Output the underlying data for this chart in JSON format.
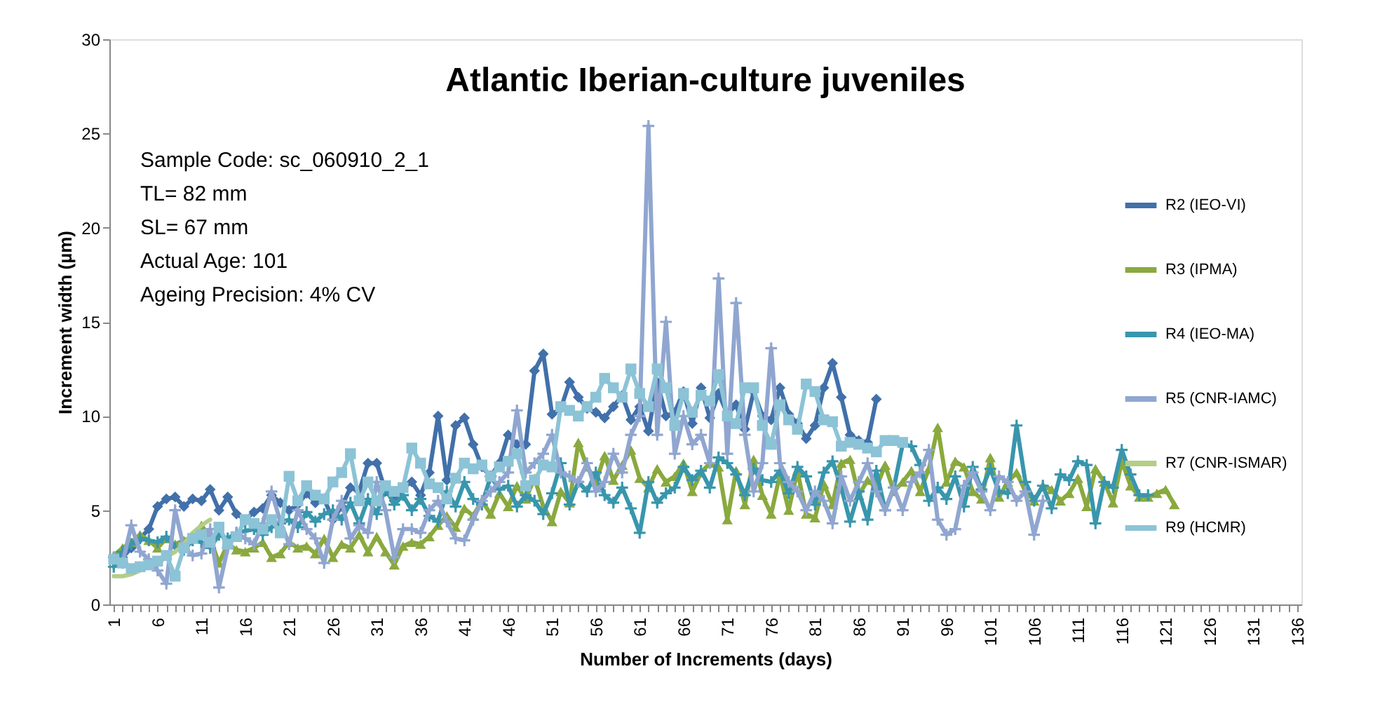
{
  "chart_data": {
    "type": "line",
    "title": "Atlantic Iberian-culture juveniles",
    "xlabel": "Number of Increments (days)",
    "ylabel": "Increment width (µm)",
    "annotations": [
      "Sample Code: sc_060910_2_1",
      "TL= 82 mm",
      "SL= 67 mm",
      "Actual Age:  101",
      "Ageing Precision:  4% CV"
    ],
    "categories": [
      "1",
      null,
      null,
      null,
      null,
      "6",
      null,
      null,
      null,
      null,
      "11",
      null,
      null,
      null,
      null,
      "16",
      null,
      null,
      null,
      null,
      "21",
      null,
      null,
      null,
      null,
      "26",
      null,
      null,
      null,
      null,
      "31",
      null,
      null,
      null,
      null,
      "36",
      null,
      null,
      null,
      null,
      "41",
      null,
      null,
      null,
      null,
      "46",
      null,
      null,
      null,
      null,
      "51",
      null,
      null,
      null,
      null,
      "56",
      null,
      null,
      null,
      null,
      "61",
      null,
      null,
      null,
      null,
      "66",
      null,
      null,
      null,
      null,
      "71",
      null,
      null,
      null,
      null,
      "76",
      null,
      null,
      null,
      null,
      "81",
      null,
      null,
      null,
      null,
      "86",
      null,
      null,
      null,
      null,
      "91",
      null,
      null,
      null,
      null,
      "96",
      null,
      null,
      null,
      null,
      "101",
      null,
      null,
      null,
      null,
      "106",
      null,
      null,
      null,
      null,
      "111",
      null,
      null,
      null,
      null,
      "116",
      null,
      null,
      null,
      null,
      "121",
      null,
      null,
      null,
      null,
      "126",
      null,
      null,
      null,
      null,
      "131",
      null,
      null,
      null,
      null,
      "136"
    ],
    "ylim": [
      0,
      30
    ],
    "yticks": [
      0,
      5,
      10,
      15,
      20,
      25,
      30
    ],
    "grid": false,
    "legend": "right",
    "line_style": "solid",
    "series": [
      {
        "name": "R2 (IEO-VI)",
        "color": "#4170aa",
        "marker": "diamond",
        "values": [
          2.3,
          2.5,
          3,
          3.5,
          4,
          5.2,
          5.6,
          5.7,
          5.2,
          5.6,
          5.5,
          6.1,
          5,
          5.7,
          4.8,
          4.5,
          4.9,
          5.1,
          5.8,
          5.4,
          5,
          5.3,
          5.9,
          5.4,
          5.6,
          4.5,
          5.2,
          6.2,
          6,
          7.5,
          7.5,
          6,
          5.5,
          6.2,
          6.5,
          5.8,
          7,
          10,
          6.6,
          9.5,
          9.9,
          8.5,
          7.3,
          6.8,
          7.5,
          9,
          8.5,
          8.5,
          12.4,
          13.3,
          10.1,
          10.4,
          11.8,
          11,
          10.4,
          10.2,
          9.9,
          10.5,
          11.1,
          9.8,
          10.5,
          9.2,
          11.8,
          10,
          10.2,
          11.3,
          9.6,
          11.5,
          9.9,
          11.2,
          10.1,
          10.6,
          9.3,
          11.3,
          10,
          9.8,
          11.5,
          10.1,
          9.6,
          8.8,
          9.5,
          11.5,
          12.8,
          11,
          9,
          8.7,
          8.6,
          10.9,
          null,
          null,
          null,
          null,
          null,
          null,
          null,
          null,
          null,
          null,
          null,
          null,
          null,
          null,
          null,
          null,
          null,
          null,
          null,
          null,
          null,
          null,
          null,
          null,
          null,
          null,
          null,
          null,
          null,
          null,
          null,
          null,
          null,
          null,
          null,
          null,
          null,
          null,
          null,
          null,
          null,
          null,
          null,
          null,
          null,
          null,
          null,
          null
        ]
      },
      {
        "name": "R3 (IPMA)",
        "color": "#8aa93e",
        "marker": "triangle",
        "values": [
          2.6,
          3,
          3.3,
          3.7,
          3.4,
          3,
          3.5,
          3.2,
          3.4,
          3.6,
          4.2,
          3.5,
          2.2,
          3.2,
          2.9,
          2.8,
          3,
          3.3,
          2.5,
          2.7,
          3.3,
          3,
          3.1,
          2.7,
          3.5,
          2.5,
          3.2,
          3,
          3.7,
          2.8,
          3.6,
          2.8,
          2.1,
          3.1,
          3.3,
          3.2,
          3.6,
          4.2,
          4.7,
          4.1,
          5.1,
          4.7,
          5.5,
          4.8,
          5.9,
          5.2,
          6.3,
          5.6,
          6.7,
          5.2,
          4.4,
          6,
          5.4,
          8.6,
          7.3,
          6.5,
          7.9,
          6.6,
          7.4,
          8.2,
          6.7,
          6.2,
          7.2,
          6.5,
          6.8,
          7.5,
          6,
          7,
          7.5,
          7.3,
          4.5,
          7.1,
          5.3,
          7.7,
          5.8,
          4.8,
          6.9,
          5,
          7.1,
          4.8,
          4.6,
          6.4,
          5.3,
          7.5,
          7.7,
          5.8,
          6.6,
          6.2,
          7.4,
          6,
          6.5,
          7.1,
          6,
          7.2,
          9.4,
          6.5,
          7.6,
          7.3,
          6,
          5.6,
          7.8,
          5.7,
          6.5,
          7,
          6,
          5.5,
          6.3,
          6.1,
          5.5,
          5.9,
          6.7,
          5.2,
          7.2,
          6.5,
          5.4,
          7.6,
          6.3,
          5.7,
          5.7,
          5.9,
          6.1,
          5.3,
          null,
          null,
          null,
          null,
          null,
          null,
          null,
          null,
          null,
          null,
          null,
          null,
          null,
          null
        ]
      },
      {
        "name": "R4 (IEO-MA)",
        "color": "#3896ad",
        "marker": "cross",
        "values": [
          2,
          2.8,
          3.2,
          3.5,
          3.4,
          3.3,
          3.6,
          3,
          2.9,
          3.4,
          3.3,
          3,
          3.7,
          3.5,
          3.8,
          3.9,
          4,
          3.7,
          4.1,
          4.3,
          4.5,
          4.1,
          4.9,
          4.4,
          4.8,
          5,
          4.5,
          5.4,
          4.3,
          5.6,
          4.8,
          6.2,
          5.3,
          5.8,
          5,
          5.6,
          4.7,
          4.4,
          6,
          5.2,
          6.5,
          5.6,
          5.3,
          6.8,
          6.1,
          6.3,
          5.2,
          5.8,
          5.5,
          4.8,
          5.9,
          7.5,
          5.3,
          6.5,
          6,
          7,
          5.8,
          5.4,
          6.2,
          5.1,
          3.8,
          6.5,
          5.4,
          5.9,
          6.2,
          7.3,
          6.6,
          7.1,
          6.2,
          7.8,
          7.5,
          6.9,
          5.8,
          7.2,
          6.6,
          6.5,
          7.1,
          5.9,
          7.3,
          6.8,
          5.3,
          7,
          7.6,
          6.2,
          4.4,
          6,
          4.5,
          7.1,
          5,
          6.2,
          8.5,
          8.4,
          7.4,
          5.5,
          6.2,
          5.6,
          6.8,
          5.2,
          7.3,
          6.1,
          7.2,
          6,
          5.9,
          9.5,
          6.5,
          5.5,
          6.3,
          5.1,
          6.9,
          6.6,
          7.6,
          7.4,
          4.3,
          6.5,
          6.2,
          8.2,
          6.9,
          5.8,
          5.8,
          null,
          null,
          null,
          null,
          null,
          null,
          null,
          null,
          null,
          null,
          null,
          null,
          null,
          null,
          null,
          null,
          null
        ]
      },
      {
        "name": "R5 (CNR-IAMC)",
        "color": "#90a6d0",
        "marker": "cross",
        "values": [
          2.5,
          2.2,
          4.2,
          2.8,
          2.4,
          1.8,
          1.1,
          5,
          3,
          2.6,
          2.7,
          4,
          0.9,
          3,
          3.8,
          3.5,
          3.2,
          4.3,
          6,
          4.4,
          3.2,
          5,
          4,
          3.5,
          2.2,
          4.5,
          5.5,
          3.5,
          4.2,
          3.8,
          6.5,
          5,
          2.5,
          4,
          4,
          3.8,
          5,
          5.5,
          4.4,
          3.5,
          3.4,
          4.5,
          5.5,
          6,
          6.5,
          7,
          10.3,
          7,
          7.5,
          8,
          9,
          7,
          6.8,
          6.5,
          7.5,
          6,
          6.5,
          8,
          7,
          9,
          10,
          25.4,
          9,
          15,
          8,
          10,
          8.5,
          9,
          7.5,
          17.3,
          8,
          16,
          9,
          6,
          7.5,
          13.6,
          7.5,
          6.5,
          6,
          5,
          6,
          5.5,
          4.3,
          6.8,
          5.5,
          6.5,
          7.5,
          6,
          5,
          6.2,
          5,
          6.5,
          7,
          8.2,
          4.5,
          3.7,
          4,
          6.3,
          7,
          6,
          5,
          6.8,
          6.5,
          5.5,
          6,
          3.7,
          5.5,
          null,
          null,
          null,
          null,
          null,
          null,
          null,
          null,
          null,
          null,
          null,
          null,
          null,
          null,
          null,
          null,
          null,
          null,
          null,
          null,
          null,
          null,
          null,
          null,
          null,
          null,
          null,
          null,
          null
        ]
      },
      {
        "name": "R7 (CNR-ISMAR)",
        "color": "#b4cd88",
        "marker": "none",
        "values": [
          1.5,
          1.5,
          1.6,
          1.8,
          2,
          2.2,
          2.5,
          2.8,
          3.2,
          3.8,
          4.2,
          4.5,
          null,
          null,
          null,
          null,
          null,
          null,
          null,
          null,
          null,
          null,
          null,
          null,
          null,
          null,
          null,
          null,
          null,
          null,
          null,
          null,
          null,
          null,
          null,
          null,
          null,
          null,
          null,
          null,
          null,
          null,
          null,
          null,
          null,
          null,
          null,
          null,
          null,
          null,
          null,
          null,
          null,
          null,
          null,
          null,
          null,
          null,
          null,
          null,
          null,
          null,
          null,
          null,
          null,
          null,
          null,
          null,
          null,
          null,
          null,
          null,
          null,
          null,
          null,
          null,
          null,
          null,
          null,
          null,
          null,
          null,
          null,
          null,
          null,
          null,
          null,
          null,
          null,
          null,
          null,
          null,
          null,
          null,
          null,
          null,
          null,
          null,
          null,
          null,
          null,
          null,
          null,
          null,
          null,
          null,
          null,
          null,
          null,
          null,
          null,
          null,
          null,
          null,
          null,
          null,
          null,
          null,
          null,
          null,
          null,
          null,
          null,
          null,
          null,
          null,
          null,
          null,
          null,
          null,
          null,
          null,
          null,
          null,
          null,
          null
        ]
      },
      {
        "name": "R9 (HCMR)",
        "color": "#8cc3d6",
        "marker": "square",
        "values": [
          2.4,
          2.2,
          1.9,
          2,
          2.1,
          2.3,
          2.6,
          1.5,
          3,
          3.5,
          3.7,
          3.3,
          4.1,
          3.2,
          3.6,
          4.5,
          4.3,
          4,
          4.5,
          3.8,
          6.8,
          5.5,
          6.3,
          5.8,
          5.6,
          6.5,
          7,
          8,
          5.5,
          6.5,
          5.5,
          6.3,
          6,
          6.2,
          8.3,
          7.5,
          6.4,
          6.2,
          5.6,
          6.7,
          7.5,
          7.2,
          7.4,
          6.8,
          7.3,
          7.6,
          8,
          6.3,
          6.6,
          7.4,
          7.3,
          10.5,
          10.3,
          10,
          10.5,
          11,
          12,
          11.5,
          11,
          12.5,
          11.2,
          10.5,
          12.5,
          11.5,
          9.5,
          11.2,
          10.2,
          11.1,
          10.8,
          12.2,
          10,
          9.6,
          11.5,
          11.5,
          9.5,
          8.5,
          10.6,
          9.8,
          9.3,
          11.7,
          11.3,
          9.8,
          9.7,
          8.4,
          8.6,
          8.5,
          8.3,
          8.1,
          8.7,
          8.7,
          8.6,
          null,
          null,
          null,
          null,
          null,
          null,
          null,
          null,
          null,
          null,
          null,
          null,
          null,
          null,
          null,
          null,
          null,
          null,
          null,
          null,
          null,
          null,
          null,
          null,
          null,
          null,
          null,
          null,
          null,
          null,
          null,
          null,
          null,
          null,
          null,
          null,
          null,
          null,
          null,
          null,
          null,
          null,
          null,
          null,
          null
        ]
      }
    ]
  }
}
